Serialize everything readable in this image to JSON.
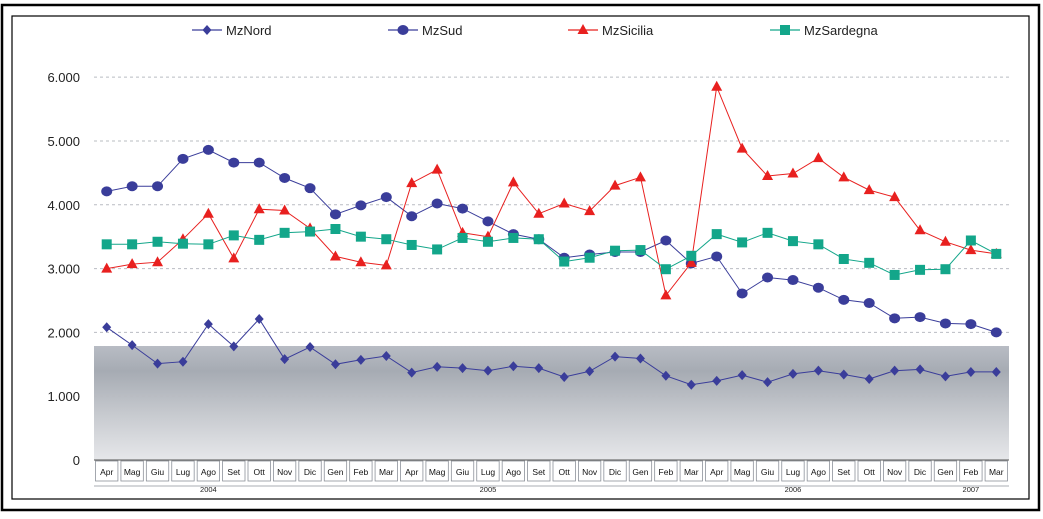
{
  "chart_data": {
    "type": "line",
    "categories": [
      "Apr",
      "Mag",
      "Giu",
      "Lug",
      "Ago",
      "Set",
      "Ott",
      "Nov",
      "Dic",
      "Gen",
      "Feb",
      "Mar",
      "Apr",
      "Mag",
      "Giu",
      "Lug",
      "Ago",
      "Set",
      "Ott",
      "Nov",
      "Dic",
      "Gen",
      "Feb",
      "Mar",
      "Apr",
      "Mag",
      "Giu",
      "Lug",
      "Ago",
      "Set",
      "Ott",
      "Nov",
      "Dic",
      "Gen",
      "Feb",
      "Mar"
    ],
    "year_labels": [
      {
        "label": "2004",
        "index": 4
      },
      {
        "label": "2005",
        "index": 15
      },
      {
        "label": "2006",
        "index": 27
      },
      {
        "label": "2007",
        "index": 34
      }
    ],
    "y_ticks": [
      "0",
      "1.000",
      "2.000",
      "3.000",
      "4.000",
      "5.000",
      "6.000"
    ],
    "ylim": [
      0,
      6300
    ],
    "grid": true,
    "legend_position": "top",
    "series": [
      {
        "name": "MzNord",
        "color": "#3a3d9a",
        "marker": "diamond",
        "line_width": 1,
        "values": [
          2080,
          1800,
          1510,
          1540,
          2130,
          1780,
          2210,
          1580,
          1770,
          1500,
          1570,
          1630,
          1370,
          1460,
          1440,
          1400,
          1470,
          1440,
          1300,
          1390,
          1620,
          1590,
          1320,
          1180,
          1240,
          1330,
          1220,
          1350,
          1400,
          1340,
          1270,
          1400,
          1420,
          1310,
          1380,
          1380
        ]
      },
      {
        "name": "MzSud",
        "color": "#3a3d9a",
        "marker": "circle",
        "line_width": 1,
        "values": [
          4210,
          4290,
          4290,
          4720,
          4860,
          4660,
          4660,
          4420,
          4260,
          3850,
          3990,
          4120,
          3820,
          4020,
          3940,
          3740,
          3540,
          3460,
          3170,
          3220,
          3260,
          3260,
          3440,
          3080,
          3190,
          2610,
          2860,
          2820,
          2700,
          2510,
          2460,
          2220,
          2240,
          2140,
          2130,
          2000
        ]
      },
      {
        "name": "MzSicilia",
        "color": "#e8201f",
        "marker": "triangle",
        "line_width": 1,
        "values": [
          3000,
          3070,
          3100,
          3460,
          3860,
          3160,
          3930,
          3910,
          3630,
          3190,
          3100,
          3050,
          4340,
          4550,
          3560,
          3500,
          4350,
          3860,
          4020,
          3900,
          4300,
          4430,
          2580,
          3090,
          5850,
          4880,
          4450,
          4490,
          4730,
          4430,
          4230,
          4120,
          3600,
          3420,
          3290,
          3230
        ]
      },
      {
        "name": "MzSardegna",
        "color": "#13a68a",
        "marker": "square",
        "line_width": 1,
        "values": [
          3380,
          3380,
          3420,
          3390,
          3380,
          3520,
          3450,
          3560,
          3580,
          3620,
          3500,
          3460,
          3370,
          3300,
          3480,
          3420,
          3480,
          3460,
          3110,
          3170,
          3280,
          3290,
          2990,
          3200,
          3540,
          3410,
          3560,
          3430,
          3380,
          3150,
          3090,
          2900,
          2980,
          2990,
          3440,
          3230
        ]
      }
    ]
  }
}
